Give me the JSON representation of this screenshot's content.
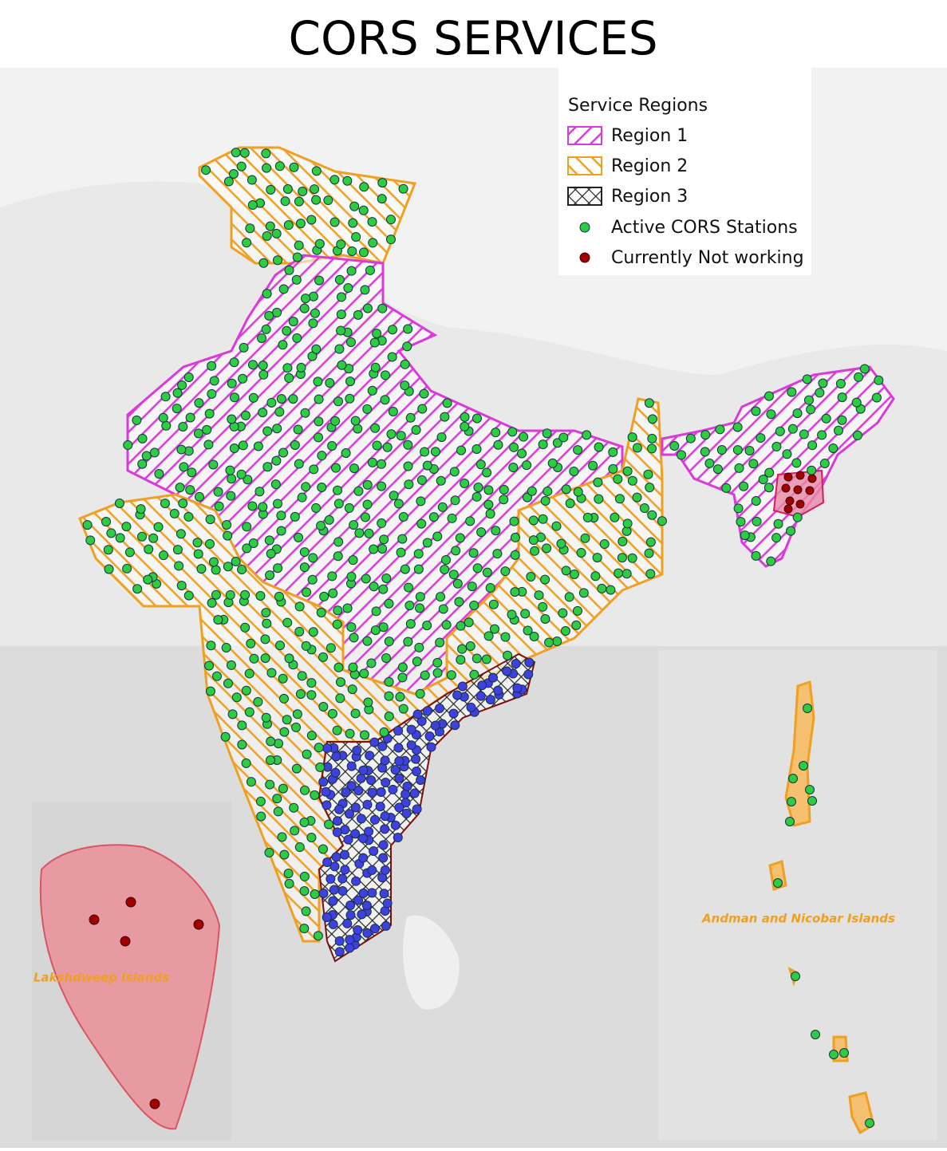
{
  "title": "CORS SERVICES",
  "legend": {
    "title": "Service Regions",
    "items": [
      {
        "label": "Region 1"
      },
      {
        "label": "Region 2"
      },
      {
        "label": "Region 3"
      },
      {
        "label": "Active CORS Stations"
      },
      {
        "label": "Currently Not working"
      }
    ]
  },
  "insets": [
    {
      "label": "Lakshdweep Islands"
    },
    {
      "label": "Andman and Nicobar Islands"
    }
  ]
}
